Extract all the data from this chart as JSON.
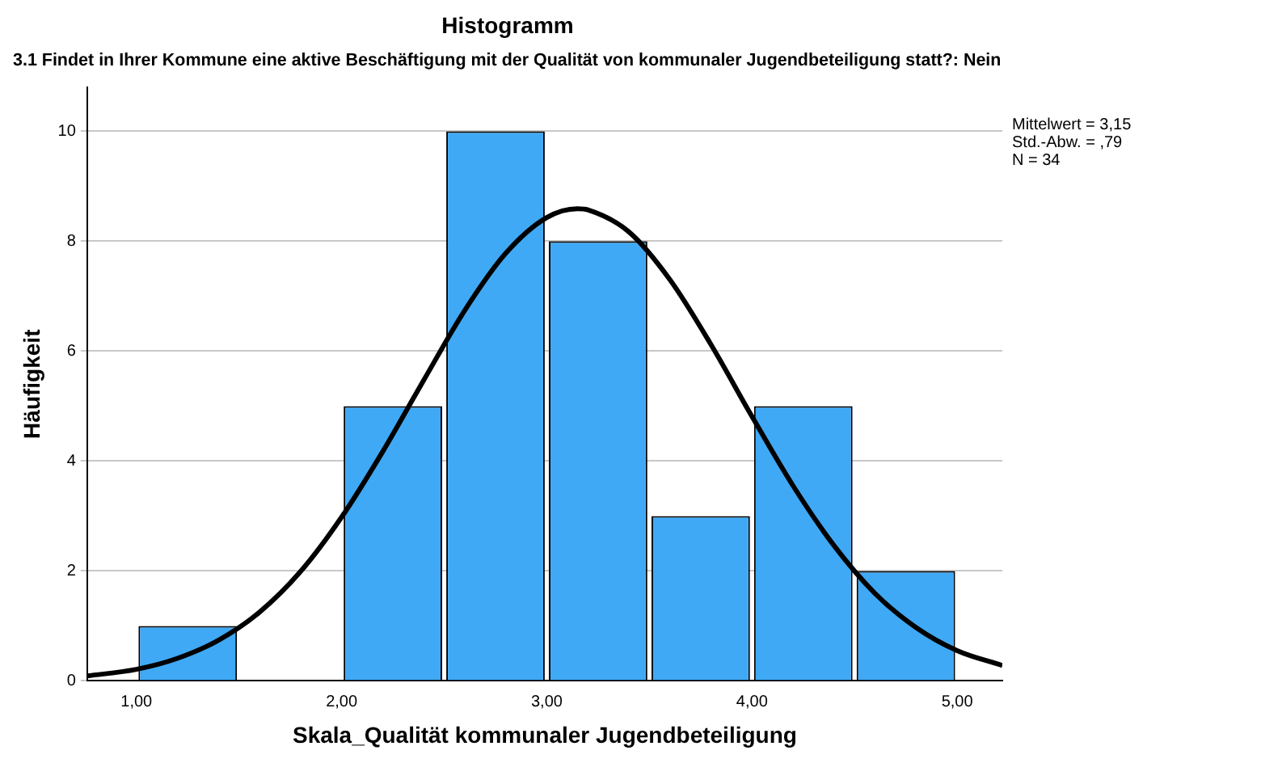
{
  "chart_data": {
    "type": "histogram",
    "title": "Histogramm",
    "subtitle": "3.1 Findet in Ihrer Kommune eine aktive Beschäftigung mit der Qualität von kommunaler Jugendbeteiligung statt?: Nein",
    "xlabel": "Skala_Qualität kommunaler Jugendbeteiligung",
    "ylabel": "Häufigkeit",
    "bins": [
      1.0,
      1.5,
      2.0,
      2.5,
      3.0,
      3.5,
      4.0,
      4.5,
      5.0
    ],
    "values": [
      1,
      0,
      5,
      10,
      8,
      3,
      5,
      2
    ],
    "color": "#3fa9f5",
    "series": [
      {
        "type": "line",
        "color": "#000000",
        "x": [
          0.76,
          1.0,
          1.2,
          1.4,
          1.6,
          1.8,
          2.0,
          2.2,
          2.4,
          2.6,
          2.8,
          3.0,
          3.15,
          3.2,
          3.4,
          3.6,
          3.8,
          4.0,
          4.2,
          4.4,
          4.6,
          4.8,
          5.0,
          5.22
        ],
        "values": [
          0.09,
          0.21,
          0.41,
          0.74,
          1.25,
          1.99,
          2.98,
          4.17,
          5.47,
          6.74,
          7.78,
          8.43,
          8.59,
          8.57,
          8.17,
          7.3,
          6.12,
          4.81,
          3.55,
          2.46,
          1.59,
          0.97,
          0.55,
          0.28
        ]
      }
    ],
    "xlim": [
      0.76,
      5.22
    ],
    "xticks": [
      {
        "value": 1,
        "label": "1,00"
      },
      {
        "value": 2,
        "label": "2,00"
      },
      {
        "value": 3,
        "label": "3,00"
      },
      {
        "value": 4,
        "label": "4,00"
      },
      {
        "value": 5,
        "label": "5,00"
      }
    ],
    "ylim": [
      0,
      10.8
    ],
    "yticks": [
      0,
      2,
      4,
      6,
      8,
      10
    ],
    "grid": "y",
    "marker": "none",
    "annotations": [
      "Mittelwert = 3,15",
      "Std.-Abw. = ,79",
      "N = 34"
    ]
  }
}
